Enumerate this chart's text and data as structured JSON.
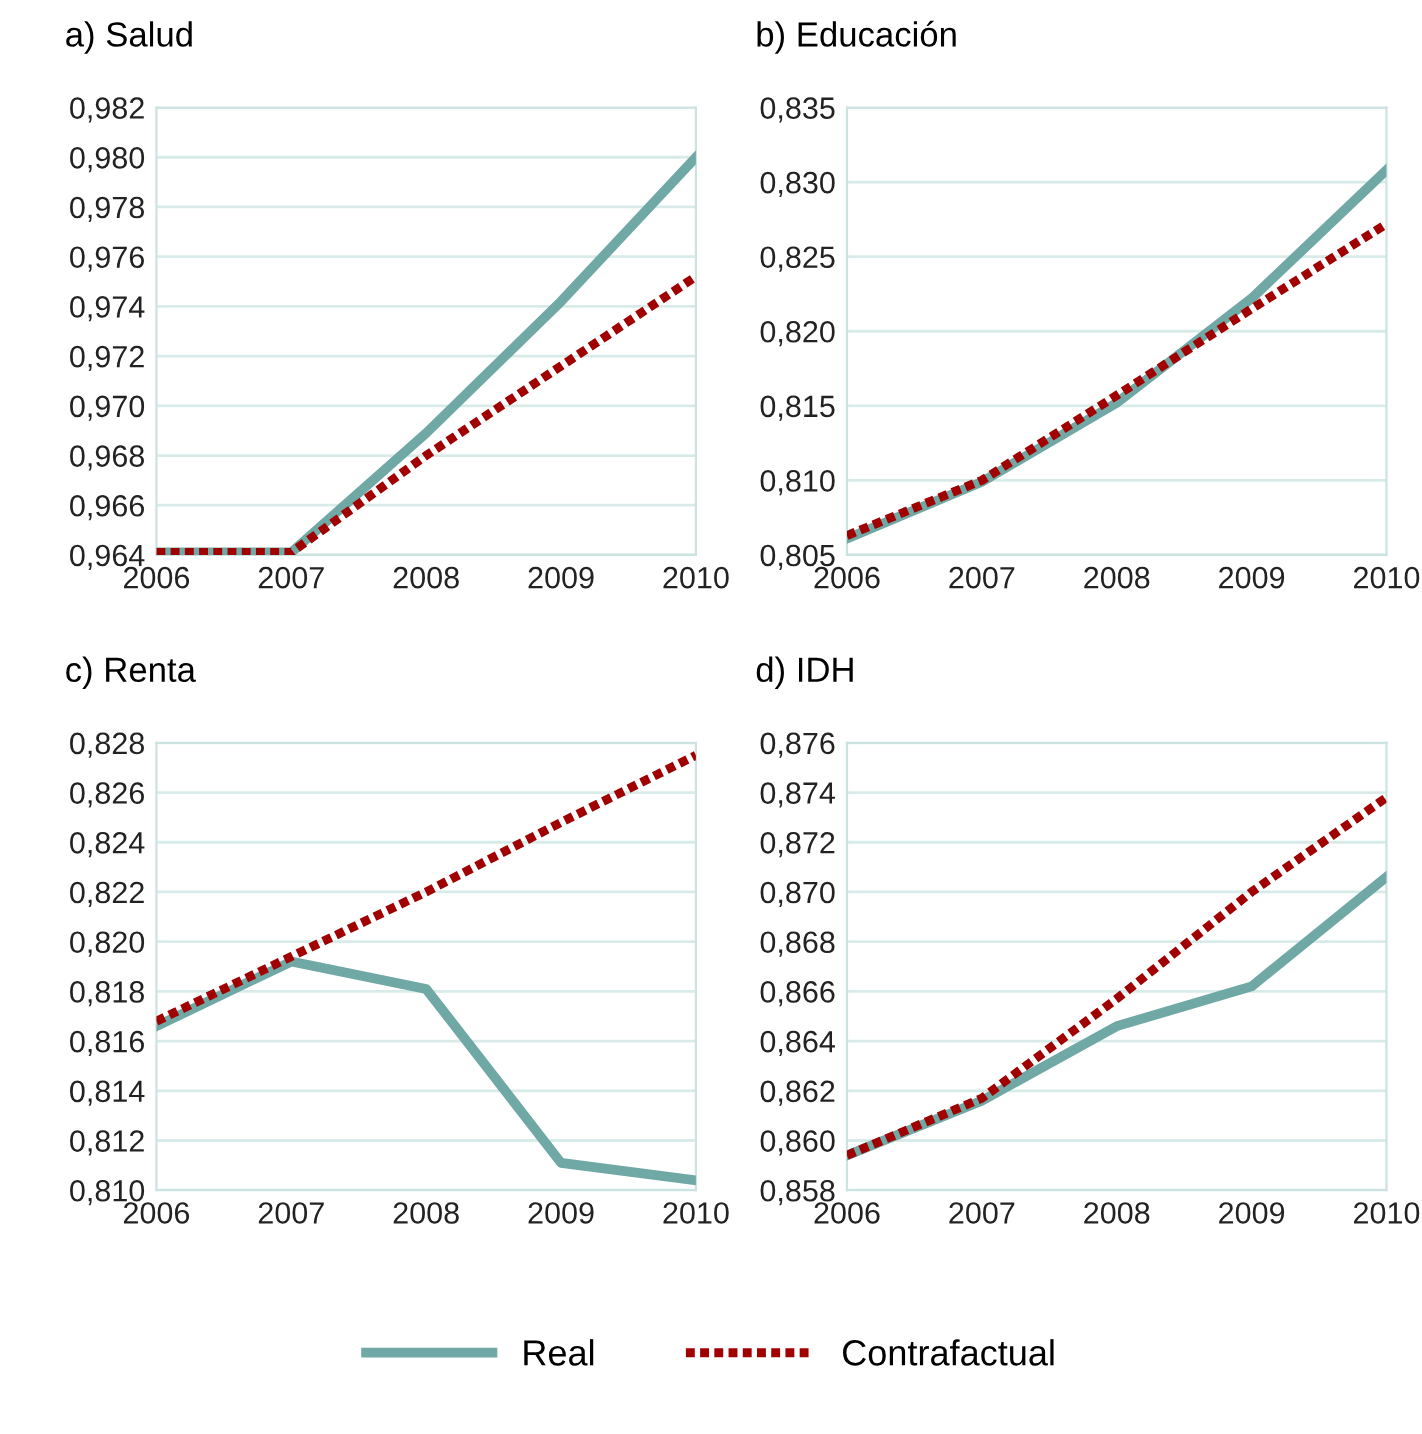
{
  "chart_data": [
    {
      "type": "line",
      "title": "a) Salud",
      "x": [
        2006,
        2007,
        2008,
        2009,
        2010
      ],
      "xlim": [
        2006,
        2010
      ],
      "xticks": [
        2006,
        2007,
        2008,
        2009,
        2010
      ],
      "ylim": [
        0.964,
        0.982
      ],
      "yticks": [
        {
          "value": 0.964,
          "label": "0,964"
        },
        {
          "value": 0.966,
          "label": "0,966"
        },
        {
          "value": 0.968,
          "label": "0,968"
        },
        {
          "value": 0.97,
          "label": "0,970"
        },
        {
          "value": 0.972,
          "label": "0,972"
        },
        {
          "value": 0.974,
          "label": "0,974"
        },
        {
          "value": 0.976,
          "label": "0,976"
        },
        {
          "value": 0.978,
          "label": "0,978"
        },
        {
          "value": 0.98,
          "label": "0,980"
        },
        {
          "value": 0.982,
          "label": "0,982"
        }
      ],
      "grid": "y",
      "series": [
        {
          "color": "#6fa8a4",
          "line_style": "solid",
          "values": [
            0.9641,
            0.9641,
            0.9689,
            0.9742,
            0.98
          ]
        },
        {
          "color": "#a00000",
          "line_style": "dotted",
          "values": [
            0.9641,
            0.9641,
            0.968,
            0.9716,
            0.9752
          ]
        }
      ]
    },
    {
      "type": "line",
      "title": "b) Educación",
      "x": [
        2006,
        2007,
        2008,
        2009,
        2010
      ],
      "xlim": [
        2006,
        2010
      ],
      "xticks": [
        2006,
        2007,
        2008,
        2009,
        2010
      ],
      "ylim": [
        0.805,
        0.835
      ],
      "yticks": [
        {
          "value": 0.805,
          "label": "0,805"
        },
        {
          "value": 0.81,
          "label": "0,810"
        },
        {
          "value": 0.815,
          "label": "0,815"
        },
        {
          "value": 0.82,
          "label": "0,820"
        },
        {
          "value": 0.825,
          "label": "0,825"
        },
        {
          "value": 0.83,
          "label": "0,830"
        },
        {
          "value": 0.835,
          "label": "0,835"
        }
      ],
      "grid": "y",
      "series": [
        {
          "color": "#6fa8a4",
          "line_style": "solid",
          "values": [
            0.8061,
            0.8099,
            0.8152,
            0.8222,
            0.8308
          ]
        },
        {
          "color": "#a00000",
          "line_style": "dotted",
          "values": [
            0.8063,
            0.81,
            0.8157,
            0.8215,
            0.8272
          ]
        }
      ]
    },
    {
      "type": "line",
      "title": "c) Renta",
      "x": [
        2006,
        2007,
        2008,
        2009,
        2010
      ],
      "xlim": [
        2006,
        2010
      ],
      "xticks": [
        2006,
        2007,
        2008,
        2009,
        2010
      ],
      "ylim": [
        0.81,
        0.828
      ],
      "yticks": [
        {
          "value": 0.81,
          "label": "0,810"
        },
        {
          "value": 0.812,
          "label": "0,812"
        },
        {
          "value": 0.814,
          "label": "0,814"
        },
        {
          "value": 0.816,
          "label": "0,816"
        },
        {
          "value": 0.818,
          "label": "0,818"
        },
        {
          "value": 0.82,
          "label": "0,820"
        },
        {
          "value": 0.822,
          "label": "0,822"
        },
        {
          "value": 0.824,
          "label": "0,824"
        },
        {
          "value": 0.826,
          "label": "0,826"
        },
        {
          "value": 0.828,
          "label": "0,828"
        }
      ],
      "grid": "y",
      "series": [
        {
          "color": "#6fa8a4",
          "line_style": "solid",
          "values": [
            0.8166,
            0.8192,
            0.8181,
            0.8111,
            0.8104
          ]
        },
        {
          "color": "#a00000",
          "line_style": "dotted",
          "values": [
            0.8168,
            0.8194,
            0.822,
            0.8248,
            0.8275
          ]
        }
      ]
    },
    {
      "type": "line",
      "title": "d) IDH",
      "x": [
        2006,
        2007,
        2008,
        2009,
        2010
      ],
      "xlim": [
        2006,
        2010
      ],
      "xticks": [
        2006,
        2007,
        2008,
        2009,
        2010
      ],
      "ylim": [
        0.858,
        0.876
      ],
      "yticks": [
        {
          "value": 0.858,
          "label": "0,858"
        },
        {
          "value": 0.86,
          "label": "0,860"
        },
        {
          "value": 0.862,
          "label": "0,862"
        },
        {
          "value": 0.864,
          "label": "0,864"
        },
        {
          "value": 0.866,
          "label": "0,866"
        },
        {
          "value": 0.868,
          "label": "0,868"
        },
        {
          "value": 0.87,
          "label": "0,870"
        },
        {
          "value": 0.872,
          "label": "0,872"
        },
        {
          "value": 0.874,
          "label": "0,874"
        },
        {
          "value": 0.876,
          "label": "0,876"
        }
      ],
      "grid": "y",
      "legend": "bottom",
      "series": [
        {
          "name": "Real",
          "color": "#6fa8a4",
          "line_style": "solid",
          "values": [
            0.8594,
            0.8616,
            0.8646,
            0.8662,
            0.8706
          ]
        },
        {
          "name": "Contrafactual",
          "color": "#a00000",
          "line_style": "dotted",
          "values": [
            0.8594,
            0.8617,
            0.8657,
            0.87,
            0.8738
          ]
        }
      ]
    }
  ]
}
